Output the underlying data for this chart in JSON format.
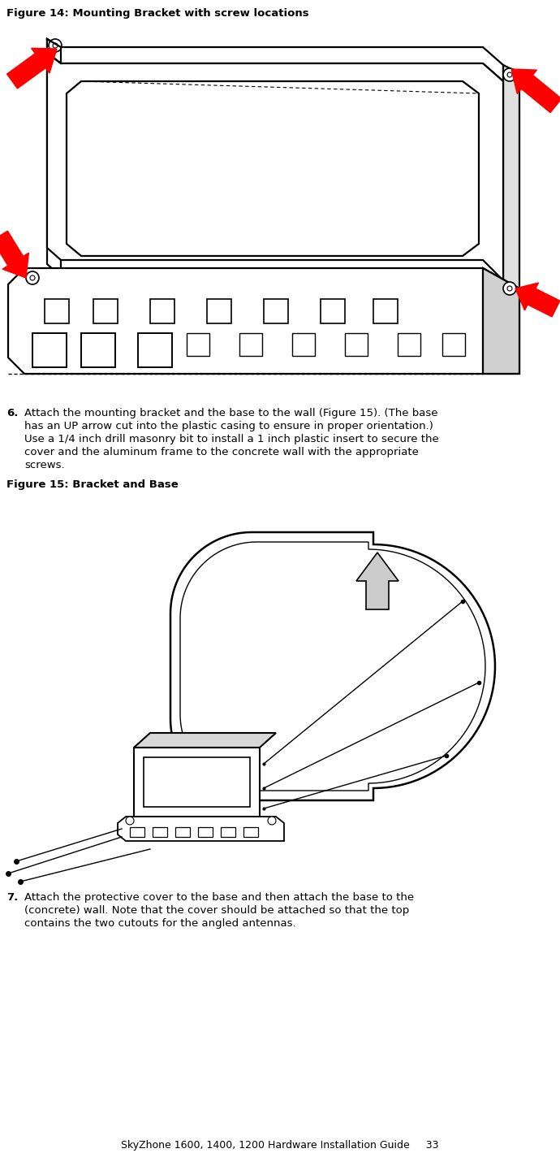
{
  "fig_width": 6.9,
  "fig_height": 14.19,
  "dpi": 100,
  "background_color": "#ffffff",
  "title14": "Figure 14: Mounting Bracket with screw locations",
  "title15": "Figure 15: Bracket and Base",
  "footer_text": "SkyZhone 1600, 1400, 1200 Hardware Installation Guide     33",
  "title_fontsize": 9.5,
  "body_fontsize": 9.5,
  "footer_fontsize": 9.0,
  "step6_lines": [
    "Attach the mounting bracket and the base to the wall (Figure 15). (The base",
    "has an UP arrow cut into the plastic casing to ensure in proper orientation.)",
    "Use a 1/4 inch drill masonry bit to install a 1 inch plastic insert to secure the",
    "cover and the aluminum frame to the concrete wall with the appropriate",
    "screws."
  ],
  "step7_lines": [
    "Attach the protective cover to the base and then attach the base to the",
    "(concrete) wall. Note that the cover should be attached so that the top",
    "contains the two cutouts for the angled antennas."
  ]
}
